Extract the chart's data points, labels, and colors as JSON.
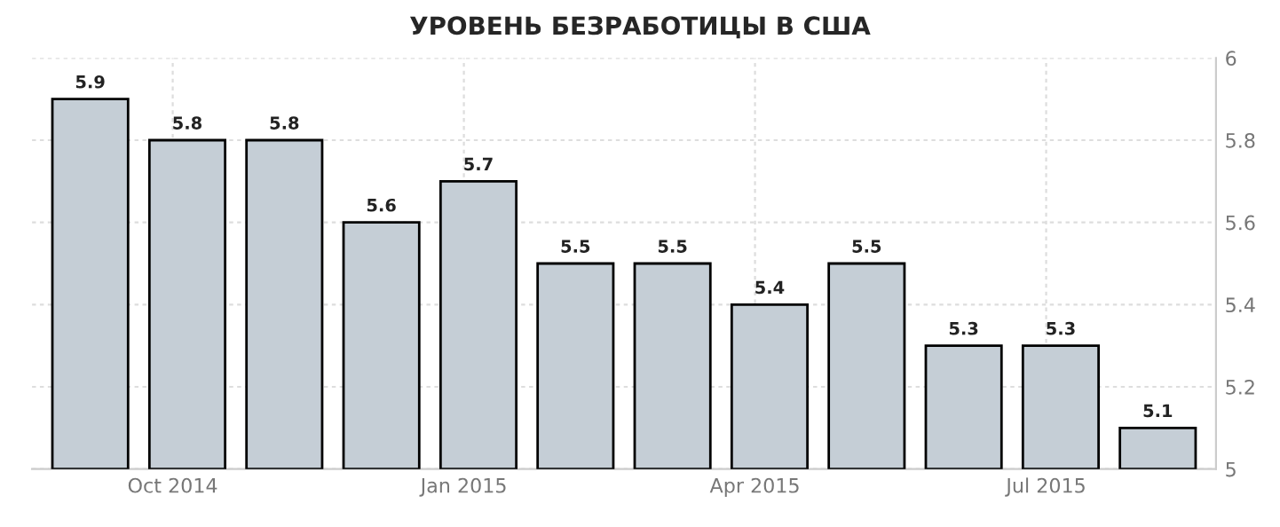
{
  "chart_data": {
    "type": "bar",
    "title": "УРОВЕНЬ БЕЗРАБОТИЦЫ В США",
    "categories": [
      null,
      "Oct 2014",
      null,
      null,
      "Jan 2015",
      null,
      null,
      "Apr 2015",
      null,
      null,
      "Jul 2015",
      null
    ],
    "values": [
      5.9,
      5.8,
      5.8,
      5.6,
      5.7,
      5.5,
      5.5,
      5.4,
      5.5,
      5.3,
      5.3,
      5.1
    ],
    "color": "#c5ced6",
    "ylim": [
      5,
      6
    ],
    "yticks": [
      5,
      5.2,
      5.4,
      5.6,
      5.8,
      6
    ],
    "grid": true,
    "data_labels": true
  }
}
